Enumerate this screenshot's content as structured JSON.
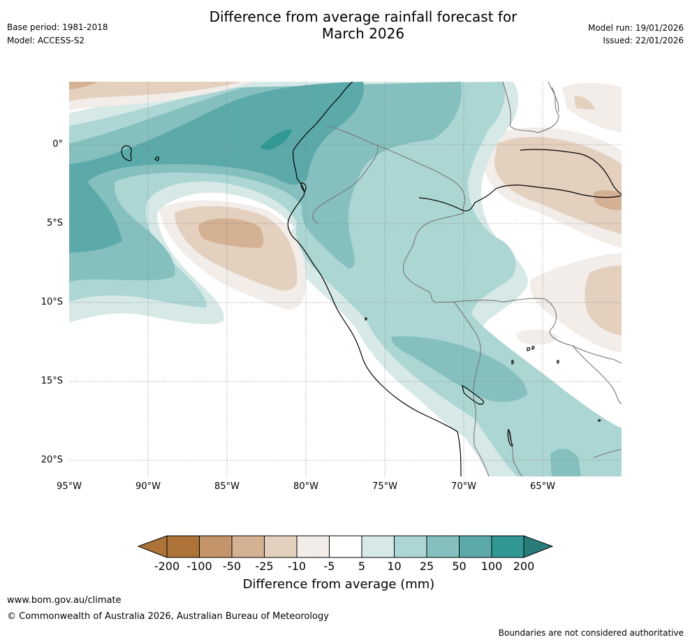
{
  "header": {
    "title_line1": "Difference from average rainfall forecast for",
    "title_line2": "March 2026",
    "base_period": "Base period: 1981-2018",
    "model": "Model: ACCESS-S2",
    "model_run": "Model run: 19/01/2026",
    "issued": "Issued: 22/01/2026"
  },
  "map": {
    "latitude_labels": [
      "0°",
      "5°S",
      "10°S",
      "15°S",
      "20°S"
    ],
    "longitude_labels": [
      "95°W",
      "90°W",
      "85°W",
      "80°W",
      "75°W",
      "70°W",
      "65°W"
    ]
  },
  "legend": {
    "title": "Difference from average (mm)",
    "ticks": [
      "-200",
      "-100",
      "-50",
      "-25",
      "-10",
      "-5",
      "5",
      "10",
      "25",
      "50",
      "100",
      "200"
    ],
    "colors": [
      "#ad7338",
      "#c4956a",
      "#d5b193",
      "#e4d0bf",
      "#f2ede8",
      "#ffffff",
      "#d6e9e7",
      "#acd6d4",
      "#85c0bf",
      "#5baaa9",
      "#319893",
      "#2a7c78"
    ]
  },
  "footer": {
    "website": "www.bom.gov.au/climate",
    "copyright": "© Commonwealth of Australia 2026, Australian Bureau of Meteorology",
    "disclaimer": "Boundaries are not considered authoritative"
  }
}
